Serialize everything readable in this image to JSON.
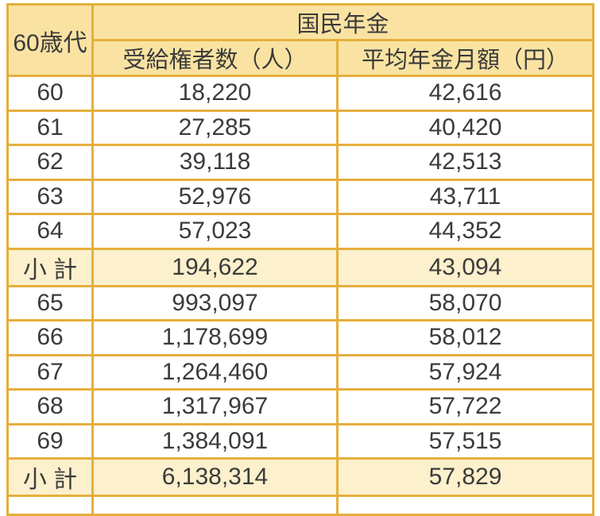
{
  "colors": {
    "border": "#E5AF3C",
    "header_bg": "#FAE3A2",
    "subtotal_bg": "#FCF0CD",
    "row_bg": "#FFFFFF",
    "text": "#3B3B3B",
    "page_bg": "#FFFFFF"
  },
  "chart_data": {
    "type": "table",
    "title": "国民年金",
    "corner_label": "60歳代",
    "columns": [
      "受給権者数（人）",
      "平均年金月額（円）"
    ],
    "rows": [
      {
        "age": "60",
        "recipients_text": "18,220",
        "recipients": 18220,
        "avg_text": "42,616",
        "avg_monthly": 42616,
        "subtotal": false
      },
      {
        "age": "61",
        "recipients_text": "27,285",
        "recipients": 27285,
        "avg_text": "40,420",
        "avg_monthly": 40420,
        "subtotal": false
      },
      {
        "age": "62",
        "recipients_text": "39,118",
        "recipients": 39118,
        "avg_text": "42,513",
        "avg_monthly": 42513,
        "subtotal": false
      },
      {
        "age": "63",
        "recipients_text": "52,976",
        "recipients": 52976,
        "avg_text": "43,711",
        "avg_monthly": 43711,
        "subtotal": false
      },
      {
        "age": "64",
        "recipients_text": "57,023",
        "recipients": 57023,
        "avg_text": "44,352",
        "avg_monthly": 44352,
        "subtotal": false
      },
      {
        "age": "小 計",
        "recipients_text": "194,622",
        "recipients": 194622,
        "avg_text": "43,094",
        "avg_monthly": 43094,
        "subtotal": true
      },
      {
        "age": "65",
        "recipients_text": "993,097",
        "recipients": 993097,
        "avg_text": "58,070",
        "avg_monthly": 58070,
        "subtotal": false
      },
      {
        "age": "66",
        "recipients_text": "1,178,699",
        "recipients": 1178699,
        "avg_text": "58,012",
        "avg_monthly": 58012,
        "subtotal": false
      },
      {
        "age": "67",
        "recipients_text": "1,264,460",
        "recipients": 1264460,
        "avg_text": "57,924",
        "avg_monthly": 57924,
        "subtotal": false
      },
      {
        "age": "68",
        "recipients_text": "1,317,967",
        "recipients": 1317967,
        "avg_text": "57,722",
        "avg_monthly": 57722,
        "subtotal": false
      },
      {
        "age": "69",
        "recipients_text": "1,384,091",
        "recipients": 1384091,
        "avg_text": "57,515",
        "avg_monthly": 57515,
        "subtotal": false
      },
      {
        "age": "小 計",
        "recipients_text": "6,138,314",
        "recipients": 6138314,
        "avg_text": "57,829",
        "avg_monthly": 57829,
        "subtotal": true
      }
    ]
  }
}
